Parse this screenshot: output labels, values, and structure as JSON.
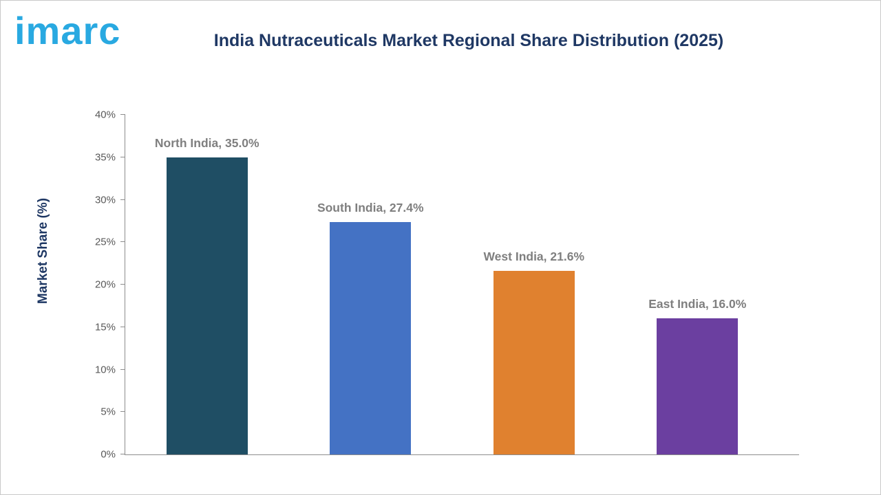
{
  "header": {
    "logo_text": "imarc",
    "title": "India Nutraceuticals Market Regional Share Distribution (2025)"
  },
  "chart_data": {
    "type": "bar",
    "title": "India Nutraceuticals Market Regional Share Distribution (2025)",
    "xlabel": "",
    "ylabel": "Market Share (%)",
    "ylim": [
      0,
      40
    ],
    "ytick_step": 5,
    "ytick_labels": [
      "0%",
      "5%",
      "10%",
      "15%",
      "20%",
      "25%",
      "30%",
      "35%",
      "40%"
    ],
    "grid": false,
    "legend_position": "none",
    "categories": [
      "North India",
      "South India",
      "West India",
      "East India"
    ],
    "values": [
      35.0,
      27.4,
      21.6,
      16.0
    ],
    "data_labels": [
      "North India, 35.0%",
      "South India, 27.4%",
      "West India, 21.6%",
      "East India, 16.0%"
    ],
    "colors": [
      "#1f4e64",
      "#4472c4",
      "#e0812f",
      "#6b3fa0"
    ]
  }
}
